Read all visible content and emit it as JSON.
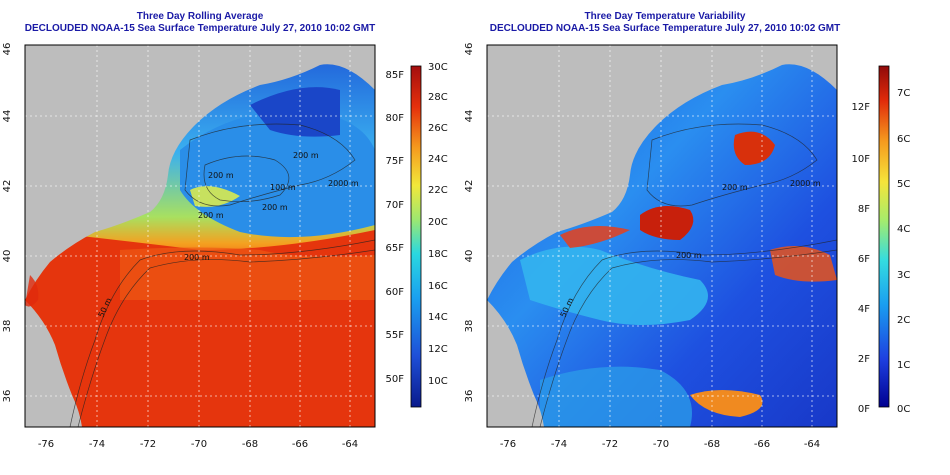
{
  "left_panel": {
    "title": "Three Day Rolling Average",
    "subtitle": "DECLOUDED NOAA-15 Sea Surface Temperature July 27, 2010 10:02 GMT",
    "colorbar_celsius": [
      "30C",
      "28C",
      "26C",
      "24C",
      "22C",
      "20C",
      "18C",
      "16C",
      "14C",
      "12C",
      "10C"
    ],
    "colorbar_fahrenheit": [
      "85F",
      "80F",
      "75F",
      "70F",
      "65F",
      "60F",
      "55F",
      "50F"
    ],
    "contour_labels": [
      "200 m",
      "200 m",
      "200 m",
      "200 m",
      "100 m",
      "2000 m",
      "200 m",
      "50 m"
    ]
  },
  "right_panel": {
    "title": "Three Day Temperature Variability",
    "subtitle": "DECLOUDED NOAA-15 Sea Surface Temperature July 27, 2010 10:02 GMT",
    "colorbar_celsius": [
      "7C",
      "6C",
      "5C",
      "4C",
      "3C",
      "2C",
      "1C",
      "0C"
    ],
    "colorbar_fahrenheit": [
      "12F",
      "10F",
      "8F",
      "6F",
      "4F",
      "2F",
      "0F"
    ],
    "contour_labels": [
      "200 m",
      "200 m",
      "2000 m",
      "50 m"
    ]
  },
  "axes": {
    "lon_ticks": [
      "-76",
      "-74",
      "-72",
      "-70",
      "-68",
      "-66",
      "-64"
    ],
    "lat_ticks": [
      "46",
      "44",
      "42",
      "40",
      "38",
      "36"
    ]
  },
  "colors": {
    "land": "#bdbdbd",
    "title_text": "#1a1aa6",
    "warm": "#e5300c",
    "cool": "#1e4fd8"
  }
}
